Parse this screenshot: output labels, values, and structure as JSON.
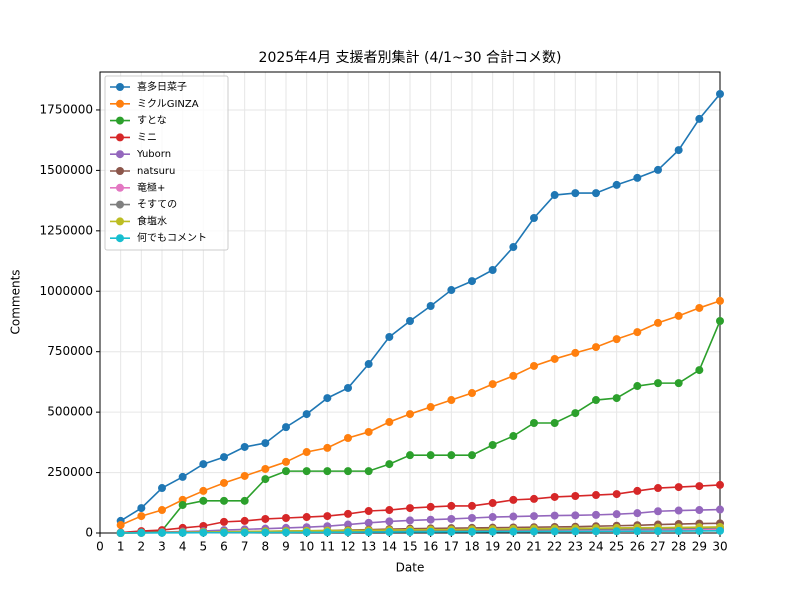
{
  "chart_data": {
    "type": "line",
    "title": "2025年4月 支援者別集計 (4/1~30 合計コメ数)",
    "x_label": "Date",
    "y_label": "Comments",
    "x": [
      1,
      2,
      3,
      4,
      5,
      6,
      7,
      8,
      9,
      10,
      11,
      12,
      13,
      14,
      15,
      16,
      17,
      18,
      19,
      20,
      21,
      22,
      23,
      24,
      25,
      26,
      27,
      28,
      29,
      30
    ],
    "xlim": [
      0,
      30
    ],
    "xticks": [
      0,
      1,
      2,
      3,
      4,
      5,
      6,
      7,
      8,
      9,
      10,
      11,
      12,
      13,
      14,
      15,
      16,
      17,
      18,
      19,
      20,
      21,
      22,
      23,
      24,
      25,
      26,
      27,
      28,
      29,
      30
    ],
    "ylim": [
      0,
      1907000
    ],
    "yticks": [
      0,
      250000,
      500000,
      750000,
      1000000,
      1250000,
      1500000,
      1750000
    ],
    "grid": true,
    "legend": "upper left",
    "series": [
      {
        "name": "喜多日菜子",
        "color": "#1f77b4",
        "values": [
          50000,
          103000,
          186000,
          232000,
          285000,
          314000,
          356000,
          372000,
          438000,
          492000,
          558000,
          600000,
          699000,
          811000,
          877000,
          939000,
          1005000,
          1042000,
          1088000,
          1183000,
          1303000,
          1398000,
          1406000,
          1406000,
          1440000,
          1469000,
          1502000,
          1584000,
          1713000,
          1816000
        ]
      },
      {
        "name": "ミクルGINZA",
        "color": "#ff7f0e",
        "values": [
          33000,
          70000,
          95000,
          137000,
          174000,
          207000,
          236000,
          265000,
          294000,
          335000,
          352000,
          393000,
          418000,
          459000,
          492000,
          521000,
          550000,
          579000,
          616000,
          650000,
          691000,
          720000,
          745000,
          769000,
          802000,
          831000,
          869000,
          898000,
          931000,
          960000
        ]
      },
      {
        "name": "すとな",
        "color": "#2ca02c",
        "values": [
          0,
          2000,
          10000,
          116000,
          133000,
          133000,
          133000,
          223000,
          256000,
          256000,
          256000,
          256000,
          256000,
          285000,
          322000,
          322000,
          322000,
          322000,
          364000,
          401000,
          455000,
          455000,
          496000,
          550000,
          558000,
          608000,
          620000,
          620000,
          674000,
          877000
        ]
      },
      {
        "name": "ミニ",
        "color": "#d62728",
        "values": [
          2000,
          8000,
          12000,
          21000,
          29000,
          46000,
          50000,
          58000,
          62000,
          66000,
          70000,
          79000,
          91000,
          95000,
          103000,
          108000,
          112000,
          112000,
          124000,
          137000,
          141000,
          149000,
          153000,
          157000,
          161000,
          174000,
          186000,
          190000,
          194000,
          199000
        ]
      },
      {
        "name": "Yuborn",
        "color": "#9467bd",
        "values": [
          0,
          2000,
          4000,
          6000,
          8000,
          12000,
          15000,
          18000,
          21000,
          24000,
          28000,
          35000,
          42000,
          48000,
          52000,
          55000,
          58000,
          62000,
          66000,
          68000,
          70000,
          72000,
          73000,
          75000,
          78000,
          82000,
          90000,
          93000,
          95000,
          97000
        ]
      },
      {
        "name": "natsuru",
        "color": "#8c564b",
        "values": [
          0,
          1000,
          2000,
          3000,
          4000,
          5000,
          6000,
          7000,
          8000,
          9000,
          10000,
          12000,
          14000,
          16000,
          18000,
          19000,
          20000,
          21000,
          22000,
          23000,
          24000,
          25000,
          26000,
          28000,
          30000,
          32000,
          35000,
          37000,
          39000,
          40000
        ]
      },
      {
        "name": "竜極+",
        "color": "#e377c2",
        "values": [
          0,
          500,
          1000,
          1500,
          2000,
          2500,
          3000,
          3500,
          4000,
          4500,
          5000,
          5500,
          6000,
          6500,
          7000,
          7500,
          8000,
          8500,
          9000,
          9500,
          10000,
          10500,
          11000,
          11500,
          12000,
          12500,
          13000,
          13500,
          14000,
          15000
        ]
      },
      {
        "name": "そすての",
        "color": "#7f7f7f",
        "values": [
          0,
          1000,
          1500,
          2000,
          3000,
          3500,
          4000,
          5000,
          5500,
          6000,
          7000,
          7500,
          8000,
          9000,
          9500,
          10000,
          11000,
          11500,
          12000,
          13000,
          13500,
          14000,
          15000,
          15500,
          16000,
          17000,
          18000,
          19000,
          20000,
          21000
        ]
      },
      {
        "name": "食塩水",
        "color": "#bcbd22",
        "values": [
          0,
          1000,
          2000,
          3000,
          4000,
          5000,
          6000,
          7000,
          8000,
          9000,
          10000,
          10000,
          11000,
          12000,
          13000,
          14000,
          14000,
          15000,
          16000,
          17000,
          18000,
          18000,
          19000,
          20000,
          21000,
          22000,
          22000,
          23000,
          24000,
          25000
        ]
      },
      {
        "name": "何でもコメント",
        "color": "#17becf",
        "values": [
          0,
          300,
          600,
          900,
          1200,
          1500,
          1800,
          2100,
          2400,
          2700,
          3000,
          3300,
          3600,
          3900,
          4200,
          4500,
          4800,
          5100,
          5400,
          5700,
          6000,
          6300,
          6600,
          6900,
          7200,
          7500,
          7800,
          8100,
          8400,
          9000
        ]
      }
    ]
  }
}
